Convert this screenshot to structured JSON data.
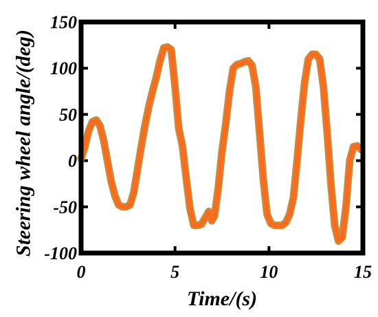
{
  "chart_data": {
    "type": "line",
    "title": "",
    "xlabel": "Time/(s)",
    "ylabel": "Steering wheel angle/(deg)",
    "xlim": [
      0,
      15
    ],
    "ylim": [
      -100,
      150
    ],
    "xticks": [
      0,
      5,
      10,
      15
    ],
    "yticks": [
      -100,
      -50,
      0,
      50,
      100,
      150
    ],
    "xtick_labels": [
      "0",
      "5",
      "10",
      "15"
    ],
    "ytick_labels": [
      "-100",
      "-50",
      "0",
      "50",
      "100",
      "150"
    ],
    "grid": false,
    "legend": "none",
    "series": [
      {
        "color_main": "#ff6a1a",
        "color_shadow": "#c98a3c",
        "x": [
          0,
          0.2,
          0.4,
          0.6,
          0.8,
          1.0,
          1.2,
          1.4,
          1.6,
          1.8,
          2.0,
          2.2,
          2.4,
          2.6,
          2.8,
          3.0,
          3.2,
          3.4,
          3.6,
          3.8,
          4.0,
          4.2,
          4.4,
          4.6,
          4.8,
          5.0,
          5.2,
          5.4,
          5.6,
          5.8,
          6.0,
          6.2,
          6.4,
          6.6,
          6.8,
          6.95,
          7.1,
          7.3,
          7.5,
          7.7,
          7.9,
          8.1,
          8.3,
          8.5,
          8.7,
          8.9,
          9.1,
          9.3,
          9.5,
          9.7,
          9.9,
          10.1,
          10.3,
          10.5,
          10.7,
          10.9,
          11.1,
          11.3,
          11.5,
          11.7,
          11.9,
          12.1,
          12.3,
          12.5,
          12.7,
          12.9,
          13.1,
          13.3,
          13.5,
          13.7,
          13.9,
          14.1,
          14.3,
          14.5,
          14.7,
          14.9
        ],
        "y": [
          2,
          15,
          32,
          42,
          44,
          38,
          22,
          0,
          -22,
          -38,
          -48,
          -50,
          -50,
          -48,
          -35,
          -10,
          15,
          38,
          58,
          75,
          90,
          108,
          122,
          123,
          120,
          80,
          35,
          15,
          -20,
          -52,
          -70,
          -70,
          -69,
          -62,
          -55,
          -65,
          -60,
          -30,
          10,
          40,
          75,
          100,
          104,
          105,
          107,
          108,
          103,
          80,
          30,
          -20,
          -58,
          -68,
          -70,
          -70,
          -70,
          -67,
          -58,
          -40,
          0,
          45,
          85,
          110,
          115,
          115,
          110,
          80,
          30,
          -25,
          -70,
          -87,
          -83,
          -50,
          0,
          15,
          16,
          12
        ]
      }
    ]
  }
}
